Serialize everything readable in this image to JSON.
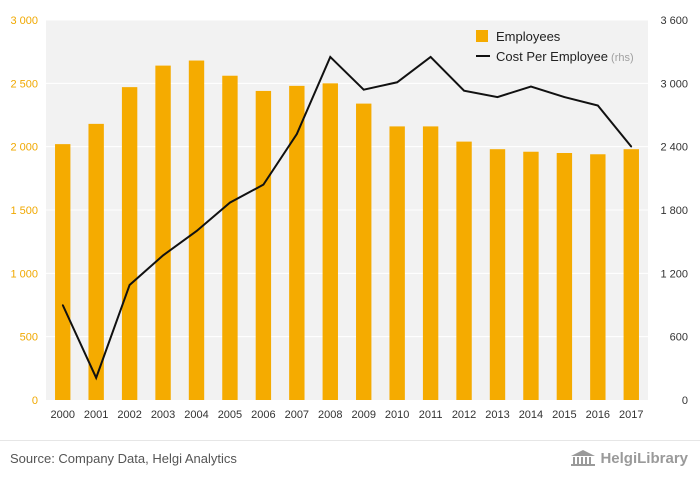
{
  "chart_data": {
    "type": "bar",
    "categories": [
      "2000",
      "2001",
      "2002",
      "2003",
      "2004",
      "2005",
      "2006",
      "2007",
      "2008",
      "2009",
      "2010",
      "2011",
      "2012",
      "2013",
      "2014",
      "2015",
      "2016",
      "2017"
    ],
    "series": [
      {
        "name": "Employees",
        "type": "bar",
        "axis": "left",
        "color": "#f5ab00",
        "values": [
          2020,
          2180,
          2470,
          2640,
          2680,
          2560,
          2440,
          2480,
          2500,
          2340,
          2160,
          2160,
          2040,
          1980,
          1960,
          1950,
          1940,
          1980
        ]
      },
      {
        "name": "Cost Per Employee",
        "legend_suffix": "(rhs)",
        "type": "line",
        "axis": "right",
        "color": "#111111",
        "values": [
          900,
          210,
          1090,
          1370,
          1600,
          1870,
          2040,
          2520,
          3250,
          2940,
          3010,
          3250,
          2930,
          2870,
          2970,
          2870,
          2790,
          2400
        ]
      }
    ],
    "ylim_left": [
      0,
      3000
    ],
    "yticks_left": [
      0,
      500,
      1000,
      1500,
      2000,
      2500,
      3000
    ],
    "yticks_left_labels": [
      "0",
      "500",
      "1 000",
      "1 500",
      "2 000",
      "2 500",
      "3 000"
    ],
    "ylim_right": [
      0,
      3600
    ],
    "yticks_right": [
      0,
      600,
      1200,
      1800,
      2400,
      3000,
      3600
    ],
    "yticks_right_labels": [
      "0",
      "600",
      "1 200",
      "1 800",
      "2 400",
      "3 000",
      "3 600"
    ],
    "background_color": "#f2f2f2",
    "gridline_color": "#ffffff",
    "grid": true,
    "legend_position": "top-right"
  },
  "footer": {
    "source": "Source: Company Data, Helgi Analytics",
    "brand": "HelgiLibrary"
  }
}
